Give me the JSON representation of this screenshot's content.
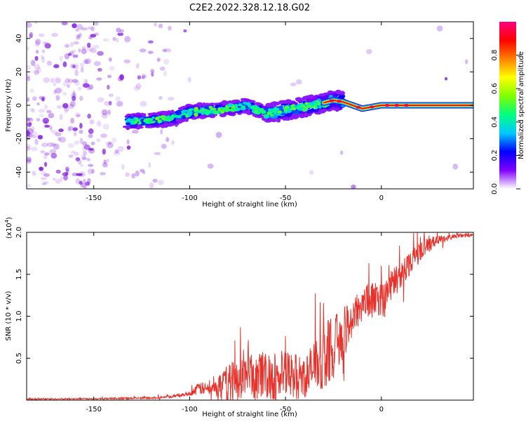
{
  "title": "C2E2.2022.328.12.18.G02",
  "chart_data": [
    {
      "type": "heatmap",
      "xlabel": "Height of straight line (km)",
      "ylabel": "Frequency (Hz)",
      "xlim": [
        -185,
        48
      ],
      "ylim": [
        -50,
        50
      ],
      "xticks": [
        -150,
        -100,
        -50,
        0
      ],
      "yticks": [
        -40,
        -20,
        0,
        20,
        40
      ],
      "colorbar": {
        "label": "Normalized spectral amplitude",
        "range": [
          0,
          1
        ],
        "ticks": [
          "0.0",
          "0.2",
          "0.4",
          "0.6",
          "0.8"
        ],
        "tick_values": [
          0,
          0.2,
          0.4,
          0.6,
          0.8
        ],
        "colormap": [
          "#ffffff",
          "#8000ff",
          "#0000ff",
          "#00c8ff",
          "#00ff80",
          "#80ff00",
          "#ffff00",
          "#ff8000",
          "#ff0000",
          "#ff0080"
        ]
      },
      "signal_track": [
        {
          "x": -133,
          "f": -9.5
        },
        {
          "x": -125,
          "f": -9.5
        },
        {
          "x": -120,
          "f": -9
        },
        {
          "x": -110,
          "f": -8
        },
        {
          "x": -100,
          "f": -4
        },
        {
          "x": -90,
          "f": -3
        },
        {
          "x": -80,
          "f": -2
        },
        {
          "x": -70,
          "f": 0
        },
        {
          "x": -60,
          "f": -5
        },
        {
          "x": -50,
          "f": -3
        },
        {
          "x": -40,
          "f": -1
        },
        {
          "x": -32,
          "f": 1
        },
        {
          "x": -25,
          "f": 3
        },
        {
          "x": -20,
          "f": 2
        },
        {
          "x": -15,
          "f": 0
        },
        {
          "x": -10,
          "f": -2
        },
        {
          "x": -5,
          "f": -1
        },
        {
          "x": 0,
          "f": 0
        },
        {
          "x": 10,
          "f": 0
        },
        {
          "x": 20,
          "f": 0
        },
        {
          "x": 30,
          "f": 0
        },
        {
          "x": 47,
          "f": 0
        }
      ]
    },
    {
      "type": "line",
      "xlabel": "Height of straight line (km)",
      "ylabel": "SNR (10 * v/v)",
      "y_multiplier": "(x10^4)",
      "xlim": [
        -185,
        48
      ],
      "ylim": [
        0,
        20000
      ],
      "xticks": [
        -150,
        -100,
        -50,
        0
      ],
      "yticks": [
        5000,
        10000,
        15000,
        20000
      ],
      "ytick_labels": [
        "0.5",
        "1.0",
        "1.5",
        "2.0"
      ],
      "color": "#e8312a",
      "envelope": [
        {
          "x": -185,
          "base": 100,
          "amp": 150
        },
        {
          "x": -150,
          "base": 150,
          "amp": 150
        },
        {
          "x": -125,
          "base": 200,
          "amp": 250
        },
        {
          "x": -110,
          "base": 350,
          "amp": 300
        },
        {
          "x": -100,
          "base": 700,
          "amp": 500
        },
        {
          "x": -95,
          "base": 1200,
          "amp": 1500
        },
        {
          "x": -88,
          "base": 1000,
          "amp": 1500
        },
        {
          "x": -80,
          "base": 1500,
          "amp": 4500
        },
        {
          "x": -70,
          "base": 2000,
          "amp": 5500
        },
        {
          "x": -60,
          "base": 2000,
          "amp": 6000
        },
        {
          "x": -50,
          "base": 2000,
          "amp": 6000
        },
        {
          "x": -40,
          "base": 2000,
          "amp": 5000
        },
        {
          "x": -30,
          "base": 4000,
          "amp": 8000
        },
        {
          "x": -20,
          "base": 7000,
          "amp": 6000
        },
        {
          "x": -10,
          "base": 11000,
          "amp": 4500
        },
        {
          "x": 0,
          "base": 11500,
          "amp": 4000
        },
        {
          "x": 10,
          "base": 14500,
          "amp": 3500
        },
        {
          "x": 20,
          "base": 17500,
          "amp": 2500
        },
        {
          "x": 30,
          "base": 19000,
          "amp": 1000
        },
        {
          "x": 40,
          "base": 19500,
          "amp": 500
        },
        {
          "x": 48,
          "base": 19600,
          "amp": 300
        }
      ]
    }
  ]
}
